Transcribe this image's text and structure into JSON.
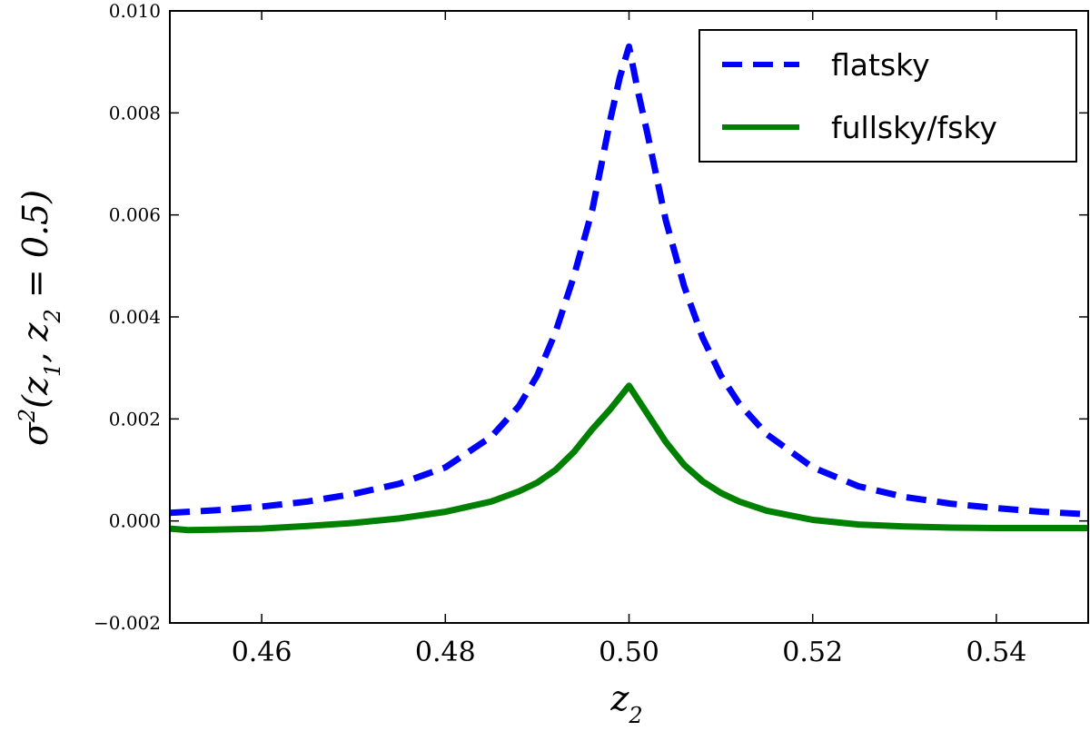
{
  "chart_data": {
    "type": "line",
    "title": "",
    "xlabel": "z2",
    "ylabel": "σ2(z1, z2 = 0.5)",
    "xlim": [
      0.45,
      0.55
    ],
    "ylim": [
      -0.002,
      0.01
    ],
    "xticks": [
      0.46,
      0.48,
      0.5,
      0.52,
      0.54
    ],
    "xtick_labels": [
      "0.46",
      "0.48",
      "0.50",
      "0.52",
      "0.54"
    ],
    "yticks": [
      -0.002,
      0.0,
      0.002,
      0.004,
      0.006,
      0.008,
      0.01
    ],
    "ytick_labels": [
      "−0.002",
      "0.000",
      "0.002",
      "0.004",
      "0.006",
      "0.008",
      "0.010"
    ],
    "grid": false,
    "legend_position": "top-right",
    "series": [
      {
        "name": "flatsky",
        "color": "#0000ff",
        "style": "dashed",
        "x": [
          0.45,
          0.455,
          0.46,
          0.465,
          0.47,
          0.475,
          0.48,
          0.485,
          0.488,
          0.49,
          0.492,
          0.494,
          0.496,
          0.498,
          0.499,
          0.5,
          0.501,
          0.502,
          0.504,
          0.506,
          0.508,
          0.51,
          0.512,
          0.515,
          0.52,
          0.525,
          0.53,
          0.535,
          0.54,
          0.545,
          0.55
        ],
        "y": [
          0.00016,
          0.00021,
          0.00028,
          0.00038,
          0.00053,
          0.00073,
          0.00105,
          0.00165,
          0.00225,
          0.00285,
          0.0037,
          0.0048,
          0.0061,
          0.0079,
          0.0087,
          0.0093,
          0.0084,
          0.0076,
          0.0059,
          0.0046,
          0.0036,
          0.00285,
          0.0023,
          0.0017,
          0.00105,
          0.00068,
          0.00047,
          0.00034,
          0.00025,
          0.00018,
          0.00013
        ]
      },
      {
        "name": "fullsky/fsky",
        "color": "#008000",
        "style": "solid",
        "x": [
          0.45,
          0.452,
          0.455,
          0.46,
          0.465,
          0.47,
          0.475,
          0.48,
          0.485,
          0.488,
          0.49,
          0.492,
          0.494,
          0.496,
          0.498,
          0.5,
          0.502,
          0.504,
          0.506,
          0.508,
          0.51,
          0.512,
          0.515,
          0.52,
          0.525,
          0.53,
          0.535,
          0.54,
          0.545,
          0.55
        ],
        "y": [
          -0.00015,
          -0.00018,
          -0.00017,
          -0.00015,
          -0.0001,
          -4e-05,
          5e-05,
          0.00018,
          0.00038,
          0.00058,
          0.00075,
          0.001,
          0.00135,
          0.0018,
          0.0022,
          0.00265,
          0.0021,
          0.00155,
          0.0011,
          0.00078,
          0.00055,
          0.00038,
          0.0002,
          2e-05,
          -7e-05,
          -0.00011,
          -0.00013,
          -0.00014,
          -0.00014,
          -0.00014
        ]
      }
    ]
  }
}
